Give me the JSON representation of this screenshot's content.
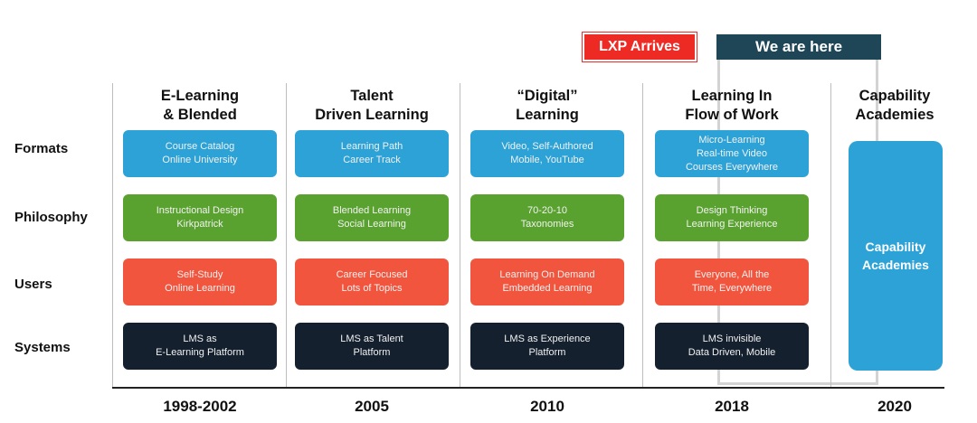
{
  "banners": {
    "lxp": "LXP Arrives",
    "here": "We are here"
  },
  "columns": [
    {
      "title": [
        "E-Learning",
        "& Blended"
      ],
      "year": "1998-2002",
      "formats": [
        "Course Catalog",
        "Online University"
      ],
      "philosophy": [
        "Instructional Design",
        "Kirkpatrick"
      ],
      "users": [
        "Self-Study",
        "Online Learning"
      ],
      "systems": [
        "LMS as",
        "E-Learning Platform"
      ]
    },
    {
      "title": [
        "Talent",
        "Driven Learning"
      ],
      "year": "2005",
      "formats": [
        "Learning Path",
        "Career Track"
      ],
      "philosophy": [
        "Blended Learning",
        "Social Learning"
      ],
      "users": [
        "Career Focused",
        "Lots of Topics"
      ],
      "systems": [
        "LMS as Talent",
        "Platform"
      ]
    },
    {
      "title": [
        "“Digital”",
        "Learning"
      ],
      "year": "2010",
      "formats": [
        "Video, Self-Authored",
        "Mobile, YouTube"
      ],
      "philosophy": [
        "70-20-10",
        "Taxonomies"
      ],
      "users": [
        "Learning On Demand",
        "Embedded Learning"
      ],
      "systems": [
        "LMS as Experience",
        "Platform"
      ]
    },
    {
      "title": [
        "Learning In",
        "Flow of Work"
      ],
      "year": "2018",
      "formats": [
        "Micro-Learning",
        "Real-time Video",
        "Courses Everywhere"
      ],
      "philosophy": [
        "Design Thinking",
        "Learning Experience"
      ],
      "users": [
        "Everyone, All the",
        "Time, Everywhere"
      ],
      "systems": [
        "LMS invisible",
        "Data Driven, Mobile"
      ]
    }
  ],
  "last_column": {
    "title": [
      "Capability",
      "Academies"
    ],
    "year": "2020",
    "box": [
      "Capability",
      "Academies"
    ]
  },
  "rows": [
    "Formats",
    "Philosophy",
    "Users",
    "Systems"
  ]
}
